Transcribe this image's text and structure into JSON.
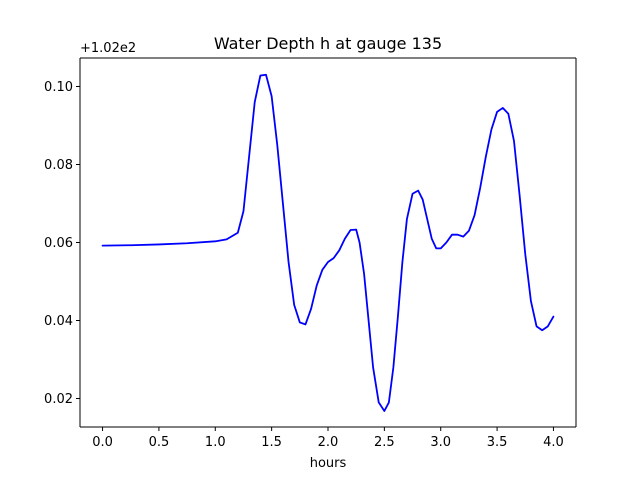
{
  "chart_data": {
    "type": "line",
    "title": "Water Depth h at gauge 135",
    "xlabel": "hours",
    "ylabel": "",
    "y_offset_label": "+1.02e2",
    "y_offset": 102,
    "xlim": [
      -0.2,
      4.2
    ],
    "ylim": [
      0.0127,
      0.1073
    ],
    "grid": false,
    "x_ticks": [
      0.0,
      0.5,
      1.0,
      1.5,
      2.0,
      2.5,
      3.0,
      3.5,
      4.0
    ],
    "x_tick_labels": [
      "0.0",
      "0.5",
      "1.0",
      "1.5",
      "2.0",
      "2.5",
      "3.0",
      "3.5",
      "4.0"
    ],
    "y_ticks": [
      0.02,
      0.04,
      0.06,
      0.08,
      0.1
    ],
    "y_tick_labels": [
      "0.02",
      "0.04",
      "0.06",
      "0.08",
      "0.10"
    ],
    "series": [
      {
        "color": "#0000ff",
        "x": [
          0.0,
          0.25,
          0.5,
          0.75,
          1.0,
          1.1,
          1.2,
          1.25,
          1.3,
          1.35,
          1.4,
          1.45,
          1.5,
          1.55,
          1.6,
          1.65,
          1.7,
          1.75,
          1.8,
          1.85,
          1.9,
          1.95,
          2.0,
          2.05,
          2.1,
          2.15,
          2.2,
          2.25,
          2.28,
          2.32,
          2.36,
          2.4,
          2.45,
          2.5,
          2.54,
          2.58,
          2.62,
          2.66,
          2.7,
          2.75,
          2.8,
          2.84,
          2.88,
          2.92,
          2.96,
          3.0,
          3.05,
          3.1,
          3.15,
          3.2,
          3.25,
          3.3,
          3.35,
          3.4,
          3.45,
          3.5,
          3.55,
          3.6,
          3.65,
          3.7,
          3.75,
          3.8,
          3.85,
          3.9,
          3.95,
          4.0
        ],
        "y": [
          0.0592,
          0.0593,
          0.0595,
          0.0598,
          0.0603,
          0.0608,
          0.0625,
          0.068,
          0.082,
          0.096,
          0.1028,
          0.103,
          0.0975,
          0.085,
          0.07,
          0.055,
          0.044,
          0.0395,
          0.039,
          0.043,
          0.049,
          0.053,
          0.055,
          0.056,
          0.058,
          0.061,
          0.0632,
          0.0633,
          0.06,
          0.052,
          0.04,
          0.028,
          0.019,
          0.0168,
          0.019,
          0.028,
          0.041,
          0.055,
          0.066,
          0.0725,
          0.0733,
          0.071,
          0.066,
          0.061,
          0.0585,
          0.0585,
          0.06,
          0.062,
          0.062,
          0.0615,
          0.063,
          0.067,
          0.074,
          0.082,
          0.089,
          0.0935,
          0.0945,
          0.093,
          0.086,
          0.072,
          0.057,
          0.045,
          0.0385,
          0.0375,
          0.0385,
          0.041
        ]
      }
    ]
  }
}
